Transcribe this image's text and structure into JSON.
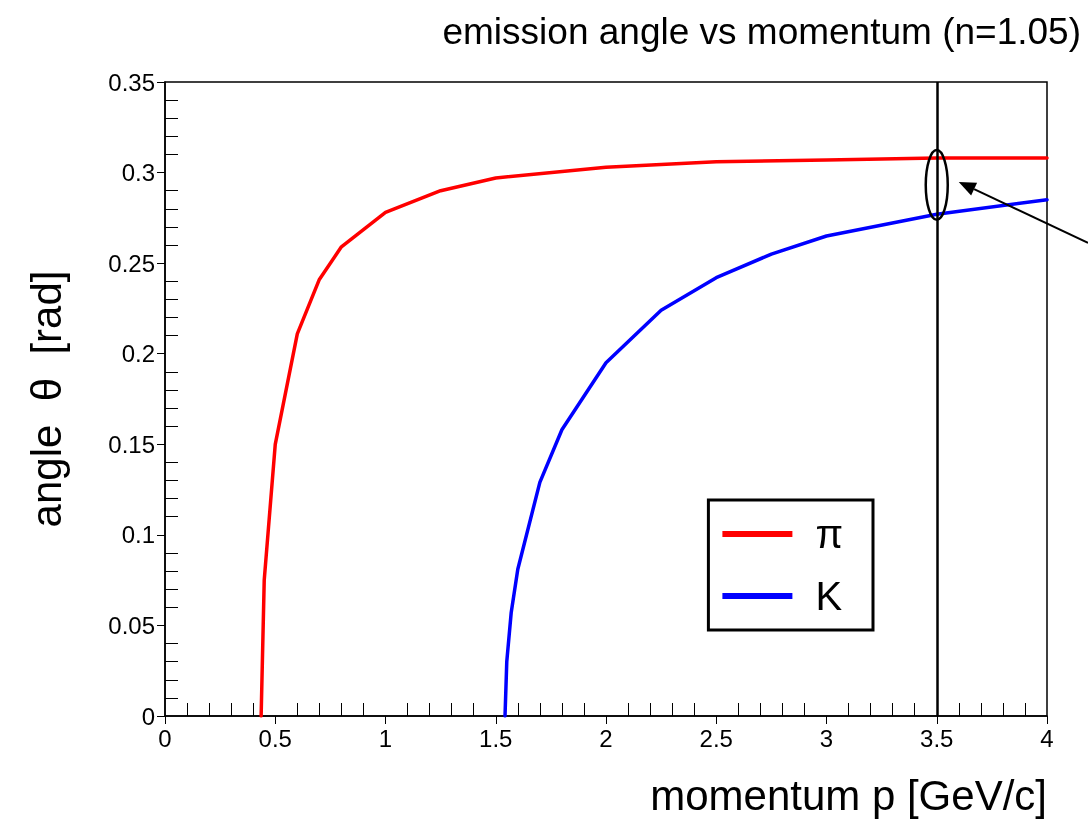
{
  "chart_data": {
    "type": "line",
    "title": "emission angle vs momentum (n=1.05)",
    "xlabel": "momentum p [GeV/c]",
    "ylabel": "angle  θ  [rad]",
    "xlim": [
      0,
      4
    ],
    "xticks": [
      0,
      {
        "value": 0.1,
        "label": null
      },
      {
        "value": 0.2,
        "label": null
      },
      {
        "value": 0.3,
        "label": null
      },
      {
        "value": 0.4,
        "label": null
      },
      0.5,
      {
        "value": 0.6,
        "label": null
      },
      {
        "value": 0.7,
        "label": null
      },
      {
        "value": 0.8,
        "label": null
      },
      {
        "value": 0.9,
        "label": null
      },
      1,
      {
        "value": 1.1,
        "label": null
      },
      {
        "value": 1.2,
        "label": null
      },
      {
        "value": 1.3,
        "label": null
      },
      {
        "value": 1.4,
        "label": null
      },
      1.5,
      {
        "value": 1.6,
        "label": null
      },
      {
        "value": 1.7,
        "label": null
      },
      {
        "value": 1.8,
        "label": null
      },
      {
        "value": 1.9,
        "label": null
      },
      2,
      {
        "value": 2.1,
        "label": null
      },
      {
        "value": 2.2,
        "label": null
      },
      {
        "value": 2.3,
        "label": null
      },
      {
        "value": 2.4,
        "label": null
      },
      2.5,
      {
        "value": 2.6,
        "label": null
      },
      {
        "value": 2.7,
        "label": null
      },
      {
        "value": 2.8,
        "label": null
      },
      {
        "value": 2.9,
        "label": null
      },
      3,
      {
        "value": 3.1,
        "label": null
      },
      {
        "value": 3.2,
        "label": null
      },
      {
        "value": 3.3,
        "label": null
      },
      {
        "value": 3.4,
        "label": null
      },
      3.5,
      {
        "value": 3.6,
        "label": null
      },
      {
        "value": 3.7,
        "label": null
      },
      {
        "value": 3.8,
        "label": null
      },
      {
        "value": 3.9,
        "label": null
      },
      4
    ],
    "ylim": [
      0,
      0.35
    ],
    "yticks": [
      0,
      {
        "value": 0.01,
        "label": null
      },
      {
        "value": 0.02,
        "label": null
      },
      {
        "value": 0.03,
        "label": null
      },
      {
        "value": 0.04,
        "label": null
      },
      0.05,
      {
        "value": 0.06,
        "label": null
      },
      {
        "value": 0.07,
        "label": null
      },
      {
        "value": 0.08,
        "label": null
      },
      {
        "value": 0.09,
        "label": null
      },
      0.1,
      {
        "value": 0.11,
        "label": null
      },
      {
        "value": 0.12,
        "label": null
      },
      {
        "value": 0.13,
        "label": null
      },
      {
        "value": 0.14,
        "label": null
      },
      0.15,
      {
        "value": 0.16,
        "label": null
      },
      {
        "value": 0.17,
        "label": null
      },
      {
        "value": 0.18,
        "label": null
      },
      {
        "value": 0.19,
        "label": null
      },
      0.2,
      {
        "value": 0.21,
        "label": null
      },
      {
        "value": 0.22,
        "label": null
      },
      {
        "value": 0.23,
        "label": null
      },
      {
        "value": 0.24,
        "label": null
      },
      0.25,
      {
        "value": 0.26,
        "label": null
      },
      {
        "value": 0.27,
        "label": null
      },
      {
        "value": 0.28,
        "label": null
      },
      {
        "value": 0.29,
        "label": null
      },
      0.3,
      {
        "value": 0.31,
        "label": null
      },
      {
        "value": 0.32,
        "label": null
      },
      {
        "value": 0.33,
        "label": null
      },
      {
        "value": 0.34,
        "label": null
      },
      0.35
    ],
    "grid": false,
    "legend": "bottom right",
    "line_style": "solid",
    "ref_lines": [
      {
        "axis": "x",
        "value": 3.5,
        "color": "#000000"
      }
    ],
    "series": [
      {
        "name": "π",
        "color": "#ff0000",
        "x": [
          0.436,
          0.45,
          0.5,
          0.6,
          0.7,
          0.8,
          1,
          1.25,
          1.5,
          2,
          2.5,
          3,
          3.5,
          4
        ],
        "values": [
          0,
          0.075,
          0.15,
          0.211,
          0.241,
          0.259,
          0.278,
          0.29,
          0.297,
          0.303,
          0.306,
          0.307,
          0.308,
          0.308
        ]
      },
      {
        "name": "K",
        "color": "#0000ff",
        "x": [
          1.542,
          1.55,
          1.57,
          1.6,
          1.7,
          1.8,
          2,
          2.25,
          2.5,
          2.75,
          3,
          3.5,
          4
        ],
        "values": [
          0,
          0.03,
          0.057,
          0.081,
          0.129,
          0.158,
          0.195,
          0.224,
          0.242,
          0.255,
          0.265,
          0.277,
          0.285
        ]
      }
    ]
  }
}
